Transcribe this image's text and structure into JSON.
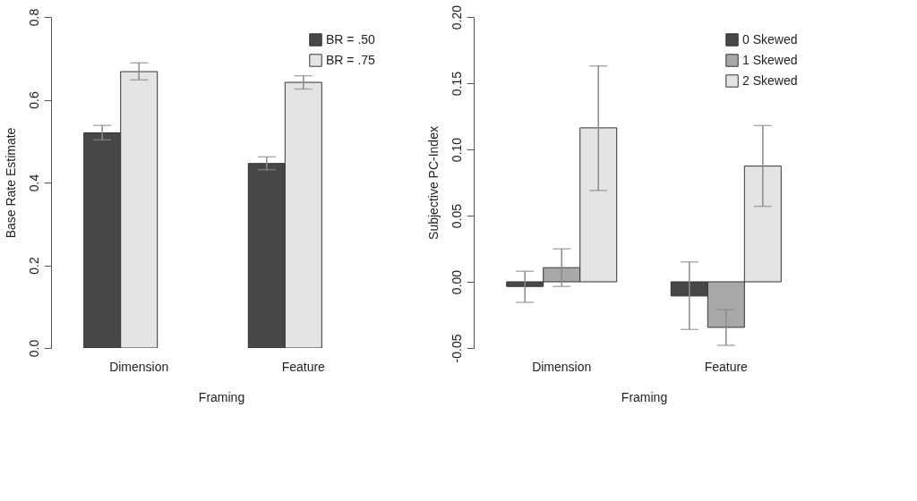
{
  "chart_data": [
    {
      "type": "bar",
      "categories": [
        "Dimension",
        "Feature"
      ],
      "xlabel": "Framing",
      "ylabel": "Base Rate Estimate",
      "ylim": [
        0,
        0.8
      ],
      "yticks": [
        {
          "value": 0,
          "label": "0.0"
        },
        0.2,
        0.4,
        0.6,
        0.8
      ],
      "grid": false,
      "legend": "top right",
      "series": [
        {
          "name": "BR = .50",
          "color": "#474747",
          "values": [
            0.52,
            0.446
          ],
          "errors": [
            [
              0.503,
              0.538
            ],
            [
              0.431,
              0.462
            ]
          ]
        },
        {
          "name": "BR = .75",
          "color": "#e4e4e4",
          "values": [
            0.668,
            0.642
          ],
          "errors": [
            [
              0.648,
              0.689
            ],
            [
              0.626,
              0.658
            ]
          ]
        }
      ]
    },
    {
      "type": "bar",
      "categories": [
        "Dimension",
        "Feature"
      ],
      "xlabel": "Framing",
      "ylabel": "Subjective PC-Index",
      "ylim": [
        -0.05,
        0.2
      ],
      "yticks": [
        {
          "value": -0.05,
          "label": "-0.05"
        },
        {
          "value": 0,
          "label": "0.00"
        },
        0.05,
        {
          "value": 0.1,
          "label": "0.10"
        },
        0.15,
        {
          "value": 0.2,
          "label": "0.20"
        }
      ],
      "grid": false,
      "legend": "top right",
      "series": [
        {
          "name": "0 Skewed",
          "color": "#474747",
          "values": [
            -0.0035,
            -0.0107
          ],
          "errors": [
            [
              -0.0155,
              0.008
            ],
            [
              -0.036,
              0.015
            ]
          ]
        },
        {
          "name": "1 Skewed",
          "color": "#a8a8a8",
          "values": [
            0.0107,
            -0.0344
          ],
          "errors": [
            [
              -0.0035,
              0.0249
            ],
            [
              -0.048,
              -0.021
            ]
          ]
        },
        {
          "name": "2 Skewed",
          "color": "#e4e4e4",
          "values": [
            0.1163,
            0.0874
          ],
          "errors": [
            [
              0.069,
              0.163
            ],
            [
              0.057,
              0.118
            ]
          ]
        }
      ]
    }
  ]
}
